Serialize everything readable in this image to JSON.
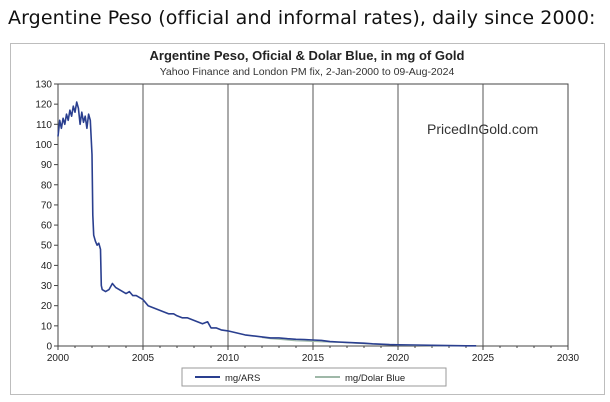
{
  "page": {
    "heading": "Argentine Peso (official and informal rates), daily since 2000:"
  },
  "chart_data": {
    "type": "line",
    "title": "Argentine Peso, Oficial & Dolar Blue, in mg of Gold",
    "subtitle": "Yahoo Finance and London PM fix, 2-Jan-2000 to 09-Aug-2024",
    "watermark": "PricedInGold.com",
    "xlabel": "",
    "ylabel": "",
    "xlim": [
      2000,
      2030
    ],
    "ylim": [
      0,
      130
    ],
    "xticks": [
      2000,
      2005,
      2010,
      2015,
      2020,
      2025,
      2030
    ],
    "yticks": [
      0,
      10,
      20,
      30,
      40,
      50,
      60,
      70,
      80,
      90,
      100,
      110,
      120,
      130
    ],
    "grid": "vertical-major",
    "legend_position": "bottom",
    "series": [
      {
        "name": "mg/ARS",
        "color": "#2a3f8f",
        "x": [
          2000.0,
          2000.1,
          2000.2,
          2000.3,
          2000.4,
          2000.5,
          2000.6,
          2000.7,
          2000.8,
          2000.9,
          2001.0,
          2001.1,
          2001.2,
          2001.3,
          2001.4,
          2001.5,
          2001.6,
          2001.7,
          2001.8,
          2001.9,
          2002.0,
          2002.05,
          2002.1,
          2002.2,
          2002.3,
          2002.4,
          2002.5,
          2002.55,
          2002.6,
          2002.8,
          2003.0,
          2003.2,
          2003.4,
          2003.6,
          2003.8,
          2004.0,
          2004.2,
          2004.4,
          2004.6,
          2004.8,
          2005.0,
          2005.3,
          2005.6,
          2005.9,
          2006.2,
          2006.5,
          2006.8,
          2007.0,
          2007.3,
          2007.6,
          2007.9,
          2008.2,
          2008.5,
          2008.8,
          2009.0,
          2009.3,
          2009.6,
          2010.0,
          2010.5,
          2011.0,
          2011.5,
          2012.0,
          2012.5,
          2013.0,
          2013.5,
          2014.0,
          2014.5,
          2015.0,
          2015.5,
          2016.0,
          2016.5,
          2017.0,
          2017.5,
          2018.0,
          2018.5,
          2019.0,
          2019.5,
          2020.0,
          2021.0,
          2022.0,
          2023.0,
          2024.0,
          2024.6
        ],
        "values": [
          104,
          112,
          108,
          113,
          110,
          115,
          112,
          117,
          114,
          119,
          116,
          121,
          118,
          110,
          116,
          111,
          114,
          108,
          115,
          112,
          95,
          65,
          55,
          52,
          50,
          51,
          48,
          30,
          28,
          27,
          28,
          31,
          29,
          28,
          27,
          26,
          27,
          25,
          25,
          24,
          23,
          20,
          19,
          18,
          17,
          16,
          16,
          15,
          14,
          14,
          13,
          12,
          11,
          12,
          9,
          9,
          8,
          7.5,
          6.5,
          5.5,
          5,
          4.5,
          4,
          4,
          3.6,
          3.3,
          3.2,
          3,
          2.8,
          2.2,
          2,
          1.8,
          1.6,
          1.4,
          1.1,
          0.9,
          0.7,
          0.6,
          0.5,
          0.35,
          0.2,
          0.1,
          0.08
        ]
      },
      {
        "name": "mg/Dolar Blue",
        "color": "#9fb8a8",
        "x": [
          2012.0,
          2012.5,
          2013.0,
          2013.5,
          2014.0,
          2014.5,
          2015.0,
          2015.5,
          2016.0,
          2017.0,
          2018.0,
          2019.0,
          2020.0,
          2021.0,
          2022.0,
          2023.0,
          2024.0,
          2024.6
        ],
        "values": [
          4.2,
          3.6,
          3.3,
          3.0,
          2.6,
          2.5,
          2.3,
          2.1,
          2.0,
          1.7,
          1.2,
          0.8,
          0.45,
          0.32,
          0.18,
          0.1,
          0.06,
          0.05
        ]
      }
    ]
  }
}
